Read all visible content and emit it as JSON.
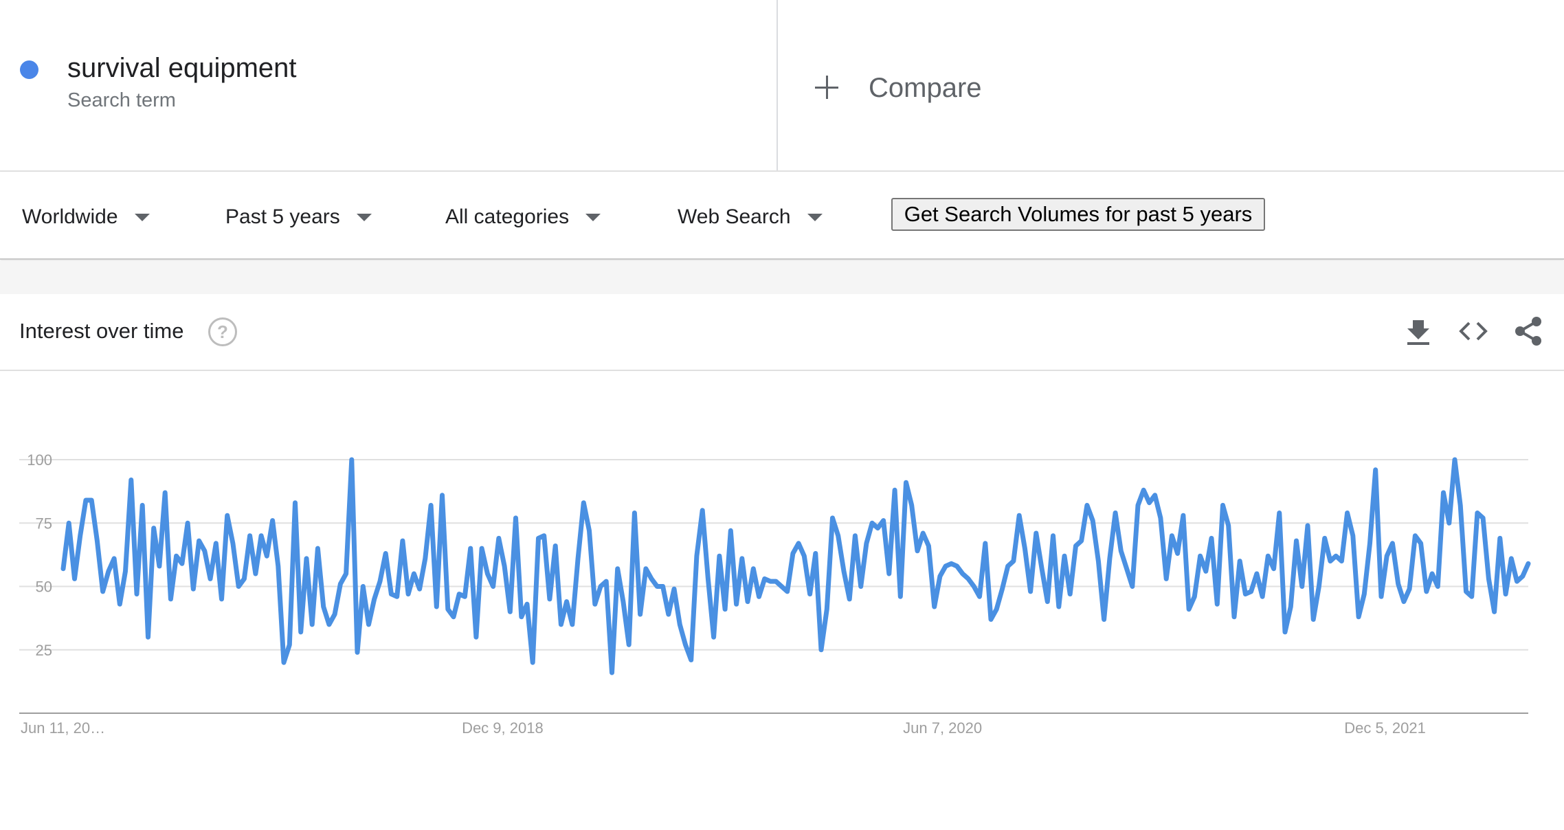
{
  "term": {
    "name": "survival equipment",
    "subtitle": "Search term",
    "color": "#4a86e8"
  },
  "compare": {
    "label": "Compare",
    "icon": "plus-icon"
  },
  "filters": {
    "region": "Worldwide",
    "time_range": "Past 5 years",
    "category": "All categories",
    "search_type": "Web Search",
    "volumes_button": "Get Search Volumes for past 5 years"
  },
  "card": {
    "title": "Interest over time",
    "icons": [
      "help-icon",
      "download-icon",
      "embed-code-icon",
      "share-icon"
    ]
  },
  "chart_data": {
    "type": "line",
    "title": "",
    "xlabel": "",
    "ylabel": "",
    "ylim": [
      0,
      100
    ],
    "y_ticks": [
      25,
      50,
      75,
      100
    ],
    "x_tick_labels": [
      "Jun 11, 20…",
      "Dec 9, 2018",
      "Jun 7, 2020",
      "Dec 5, 2021"
    ],
    "x_tick_indices": [
      0,
      78,
      156,
      234
    ],
    "grid": true,
    "line_color": "#4a90e2",
    "series": [
      {
        "name": "survival equipment",
        "values": [
          57,
          75,
          53,
          70,
          84,
          84,
          68,
          48,
          56,
          61,
          43,
          56,
          92,
          47,
          82,
          30,
          73,
          58,
          87,
          45,
          62,
          59,
          75,
          49,
          68,
          64,
          53,
          67,
          45,
          78,
          67,
          50,
          53,
          70,
          55,
          70,
          62,
          76,
          58,
          20,
          27,
          83,
          32,
          61,
          35,
          65,
          42,
          35,
          39,
          51,
          55,
          100,
          24,
          50,
          35,
          45,
          52,
          63,
          47,
          46,
          68,
          47,
          55,
          49,
          61,
          82,
          42,
          86,
          41,
          38,
          47,
          46,
          65,
          30,
          65,
          55,
          50,
          69,
          58,
          40,
          77,
          38,
          43,
          20,
          69,
          70,
          45,
          66,
          35,
          44,
          35,
          61,
          83,
          72,
          43,
          50,
          52,
          16,
          57,
          44,
          27,
          79,
          39,
          57,
          53,
          50,
          50,
          39,
          49,
          35,
          27,
          21,
          62,
          80,
          53,
          30,
          62,
          41,
          72,
          43,
          61,
          44,
          57,
          46,
          53,
          52,
          52,
          50,
          48,
          63,
          67,
          62,
          47,
          63,
          25,
          41,
          77,
          70,
          56,
          45,
          70,
          50,
          67,
          75,
          73,
          76,
          55,
          88,
          46,
          91,
          82,
          64,
          71,
          66,
          42,
          54,
          58,
          59,
          58,
          55,
          53,
          50,
          46,
          67,
          37,
          41,
          49,
          58,
          60,
          78,
          65,
          48,
          71,
          57,
          44,
          70,
          42,
          62,
          47,
          66,
          68,
          82,
          76,
          60,
          37,
          61,
          79,
          64,
          57,
          50,
          82,
          88,
          83,
          86,
          77,
          53,
          70,
          63,
          78,
          41,
          46,
          62,
          56,
          69,
          43,
          82,
          74,
          38,
          60,
          47,
          48,
          55,
          46,
          62,
          57,
          79,
          32,
          42,
          68,
          50,
          74,
          37,
          50,
          69,
          60,
          62,
          60,
          79,
          70,
          38,
          47,
          67,
          96,
          46,
          62,
          67,
          51,
          44,
          49,
          70,
          67,
          48,
          55,
          50,
          87,
          75,
          100,
          82,
          48,
          46,
          79,
          77,
          53,
          40,
          69,
          47,
          61,
          52,
          54,
          59
        ]
      }
    ]
  }
}
